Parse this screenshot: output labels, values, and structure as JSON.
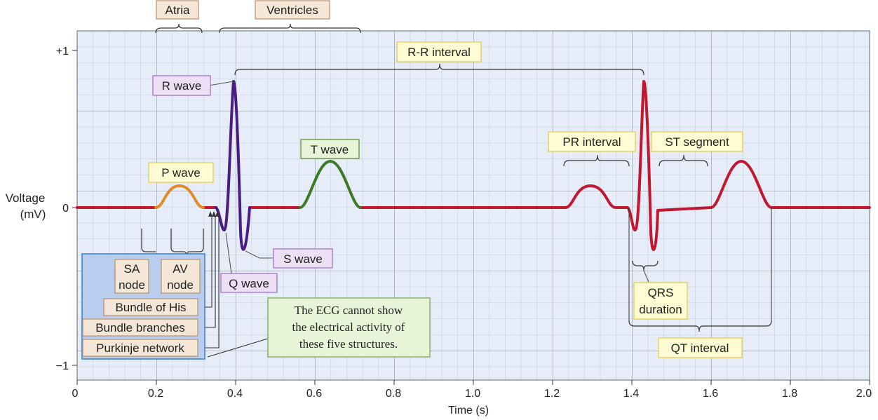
{
  "axes": {
    "y_label_line1": "Voltage",
    "y_label_line2": "(mV)",
    "x_label": "Time (s)",
    "x_ticks": [
      "0",
      "0.2",
      "0.4",
      "0.6",
      "0.8",
      "1.0",
      "1.2",
      "1.4",
      "1.6",
      "1.8",
      "2.0"
    ],
    "y_ticks": [
      "+1",
      "0",
      "−1"
    ]
  },
  "labels": {
    "atria": "Atria",
    "ventricles": "Ventricles",
    "rr_interval": "R-R interval",
    "r_wave": "R wave",
    "t_wave": "T wave",
    "p_wave": "P wave",
    "pr_interval": "PR interval",
    "st_segment": "ST segment",
    "s_wave": "S wave",
    "q_wave": "Q wave",
    "qrs_line1": "QRS",
    "qrs_line2": "duration",
    "qt_interval": "QT interval"
  },
  "structures": {
    "sa_line1": "SA",
    "sa_line2": "node",
    "av_line1": "AV",
    "av_line2": "node",
    "bundle_his": "Bundle of His",
    "bundle_branches": "Bundle branches",
    "purkinje": "Purkinje network"
  },
  "note": {
    "line1": "The ECG cannot show",
    "line2": "the electrical activity of",
    "line3": "these five structures."
  },
  "colors": {
    "background": "#e6ecf8",
    "grid_major": "#8a8f99",
    "grid_minor": "#b9c1d1",
    "trace": "#c2182f",
    "p_wave": "#e08a2a",
    "qrs": "#4a1d85",
    "t_wave": "#3d7a25",
    "yellow_box_fill": "#fffbd2",
    "yellow_box_border": "#e6c84a",
    "purple_box_fill": "#ede0f5",
    "purple_box_border": "#9b6cc4",
    "green_box_fill": "#e7f4d8",
    "green_box_border": "#7aaa55",
    "tan_box_fill": "#f5e7d7",
    "tan_box_border": "#b98f6a",
    "blue_panel_fill": "#b9cdee",
    "blue_panel_border": "#3a7fd0"
  }
}
